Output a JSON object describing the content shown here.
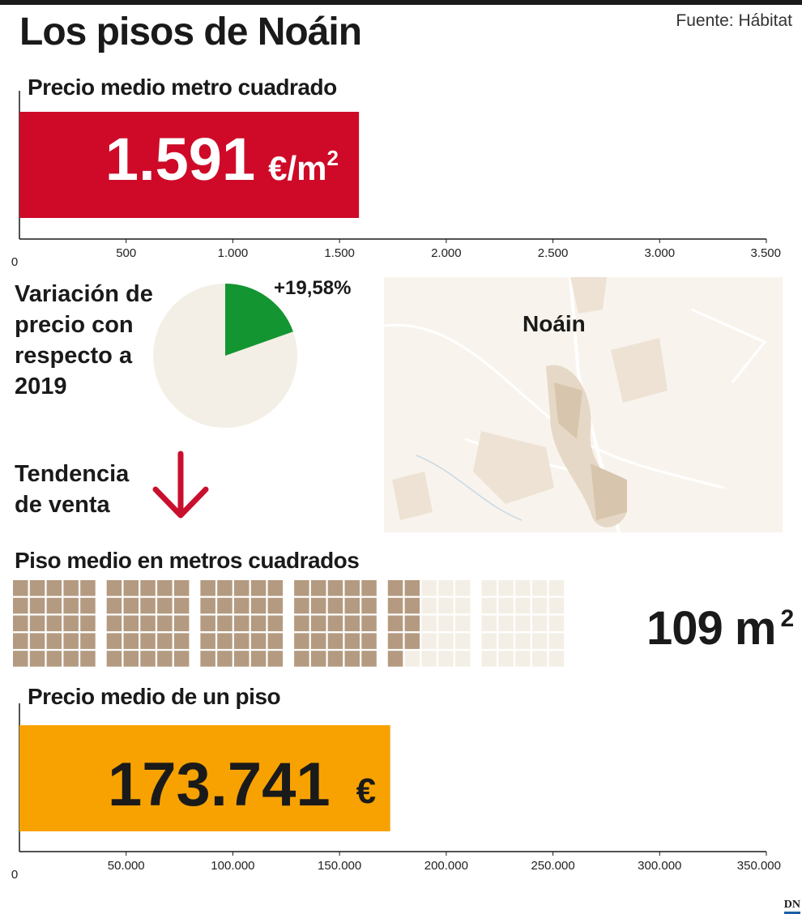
{
  "header": {
    "title": "Los pisos de Noáin",
    "source": "Fuente: Hábitat",
    "brand": "DN"
  },
  "colors": {
    "red": "#ce0a28",
    "green": "#139531",
    "orange": "#f7a200",
    "beige_pie": "#f4efe6",
    "waffle_filled": "#b49a80",
    "waffle_empty": "#f4efe6",
    "arrow": "#c8102e"
  },
  "icons": {
    "trend": "arrow-down-icon"
  },
  "price_m2": {
    "title": "Precio medio metro cuadrado",
    "value_text": "1.591",
    "unit_text": "€/m",
    "unit_sup": "2"
  },
  "variation": {
    "label_lines": [
      "Variación de",
      "precio con",
      "respecto a",
      "2019"
    ],
    "value_text": "+19,58%"
  },
  "trend": {
    "label_lines": [
      "Tendencia",
      "de venta"
    ],
    "direction": "down"
  },
  "map": {
    "label": "Noáin"
  },
  "surface": {
    "title": "Piso medio en metros cuadrados",
    "value_text": "109",
    "unit_text": "m",
    "unit_sup": "2"
  },
  "price_flat": {
    "title": "Precio medio de un piso",
    "value_text": "173.741",
    "unit_text": "€"
  },
  "chart_data": [
    {
      "type": "bar",
      "title": "Precio medio metro cuadrado",
      "categories": [
        "Noáin"
      ],
      "values": [
        1591
      ],
      "xlim": [
        0,
        3500
      ],
      "ticks": [
        0,
        500,
        1000,
        1500,
        2000,
        2500,
        3000,
        3500
      ],
      "tick_labels": [
        "0",
        "500",
        "1.000",
        "1.500",
        "2.000",
        "2.500",
        "3.000",
        "3.500"
      ],
      "orientation": "horizontal"
    },
    {
      "type": "pie",
      "title": "Variación de precio con respecto a 2019",
      "values": [
        19.58,
        80.42
      ]
    },
    {
      "type": "waffle",
      "title": "Piso medio en metros cuadrados",
      "value": 109,
      "total": 150
    },
    {
      "type": "bar",
      "title": "Precio medio de un piso",
      "categories": [
        "Noáin"
      ],
      "values": [
        173741
      ],
      "xlim": [
        0,
        350000
      ],
      "ticks": [
        0,
        50000,
        100000,
        150000,
        200000,
        250000,
        300000,
        350000
      ],
      "tick_labels": [
        "0",
        "50.000",
        "100.000",
        "150.000",
        "200.000",
        "250.000",
        "300.000",
        "350.000"
      ],
      "orientation": "horizontal"
    }
  ]
}
